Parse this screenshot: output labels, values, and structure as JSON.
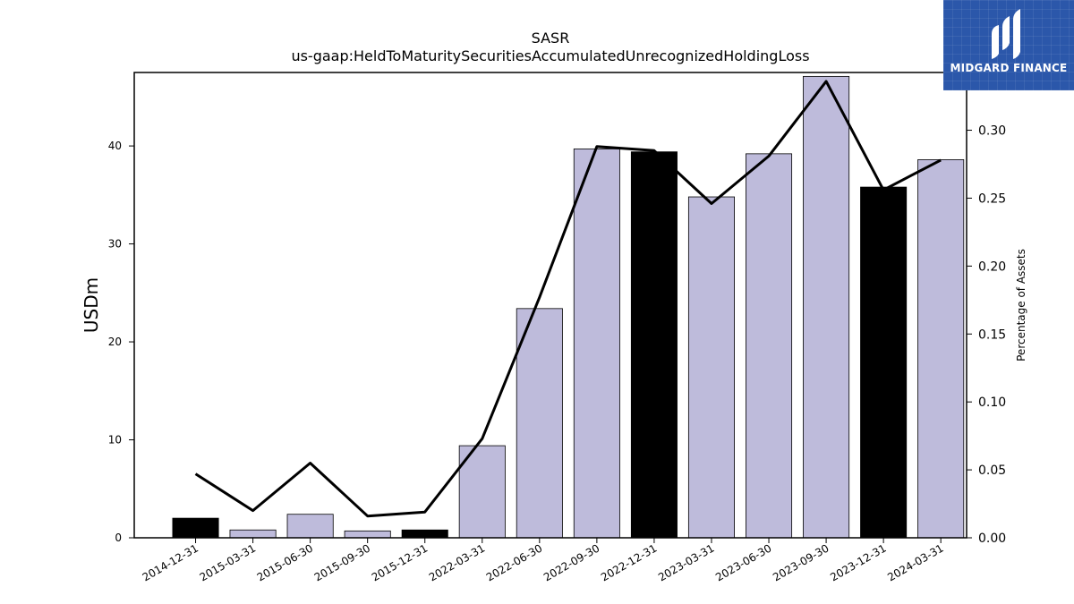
{
  "chart_data": {
    "type": "bar",
    "title": "SASR",
    "subtitle": "us-gaap:HeldToMaturitySecuritiesAccumulatedUnrecognizedHoldingLoss",
    "ylabel": "USDm",
    "y2label": "Percentage of Assets",
    "categories": [
      "2014-12-31",
      "2015-03-31",
      "2015-06-30",
      "2015-09-30",
      "2015-12-31",
      "2022-03-31",
      "2022-06-30",
      "2022-09-30",
      "2022-12-31",
      "2023-03-31",
      "2023-06-30",
      "2023-09-30",
      "2023-12-31",
      "2024-03-31"
    ],
    "values": [
      2.0,
      0.8,
      2.4,
      0.7,
      0.8,
      9.4,
      23.4,
      39.7,
      39.4,
      34.8,
      39.2,
      47.1,
      35.8,
      38.6
    ],
    "line_series": [
      0.047,
      0.02,
      0.055,
      0.016,
      0.019,
      0.073,
      0.177,
      0.288,
      0.285,
      0.246,
      0.281,
      0.336,
      0.256,
      0.278
    ],
    "bar_colors": [
      "#000000",
      "#bebbdb",
      "#bebbdb",
      "#bebbdb",
      "#000000",
      "#bebbdb",
      "#bebbdb",
      "#bebbdb",
      "#000000",
      "#bebbdb",
      "#bebbdb",
      "#bebbdb",
      "#000000",
      "#bebbdb"
    ],
    "ylim": [
      0,
      47.5
    ],
    "y2lim": [
      0,
      0.3425
    ],
    "yticks": [
      0,
      10,
      20,
      30,
      40
    ],
    "y2ticks": [
      "0.00",
      "0.05",
      "0.10",
      "0.15",
      "0.20",
      "0.25",
      "0.30"
    ],
    "grid": false,
    "legend": "none"
  },
  "logo": {
    "text": "MIDGARD FINANCE",
    "color": "#2b57aa"
  }
}
